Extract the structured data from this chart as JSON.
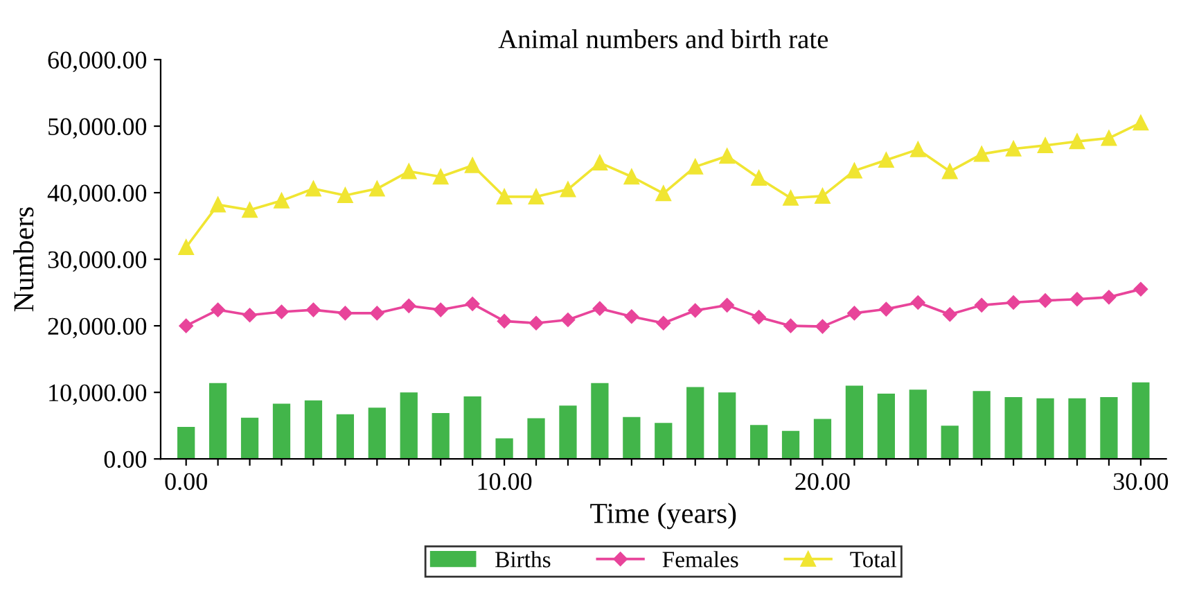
{
  "chart_data": {
    "type": "bar",
    "title": "Animal numbers and birth rate",
    "xlabel": "Time (years)",
    "ylabel": "Numbers",
    "x": [
      0,
      1,
      2,
      3,
      4,
      5,
      6,
      7,
      8,
      9,
      10,
      11,
      12,
      13,
      14,
      15,
      16,
      17,
      18,
      19,
      20,
      21,
      22,
      23,
      24,
      25,
      26,
      27,
      28,
      29,
      30
    ],
    "series": [
      {
        "name": "Births",
        "color": "#42b54a",
        "values": [
          4800,
          11400,
          6200,
          8300,
          8800,
          6700,
          7700,
          10000,
          6900,
          9400,
          3100,
          6100,
          8000,
          11400,
          6300,
          5400,
          10800,
          10000,
          5100,
          4200,
          6000,
          11000,
          9800,
          10400,
          5000,
          10200,
          9300,
          9100,
          9100,
          9300,
          11500
        ]
      },
      {
        "name": "Females",
        "type": "line",
        "marker": "diamond",
        "color": "#e8449a",
        "values": [
          20000,
          22400,
          21600,
          22100,
          22400,
          21900,
          21900,
          23000,
          22400,
          23300,
          20700,
          20400,
          20900,
          22600,
          21400,
          20400,
          22300,
          23100,
          21300,
          20000,
          19900,
          21900,
          22500,
          23500,
          21700,
          23100,
          23500,
          23800,
          24000,
          24300,
          25500
        ]
      },
      {
        "name": "Total",
        "type": "line",
        "marker": "triangle",
        "color": "#f0e532",
        "values": [
          31800,
          38200,
          37400,
          38800,
          40600,
          39600,
          40600,
          43200,
          42400,
          44100,
          39400,
          39400,
          40500,
          44500,
          42400,
          39900,
          43900,
          45500,
          42200,
          39200,
          39500,
          43300,
          44900,
          46500,
          43200,
          45800,
          46600,
          47100,
          47700,
          48200,
          50500
        ]
      }
    ],
    "xlim": [
      -0.8,
      30.8
    ],
    "xticks": [
      {
        "value": 0,
        "label": "0.00"
      },
      {
        "value": 1,
        "label": null
      },
      {
        "value": 2,
        "label": null
      },
      {
        "value": 3,
        "label": null
      },
      {
        "value": 4,
        "label": null
      },
      {
        "value": 5,
        "label": null
      },
      {
        "value": 6,
        "label": null
      },
      {
        "value": 7,
        "label": null
      },
      {
        "value": 8,
        "label": null
      },
      {
        "value": 9,
        "label": null
      },
      {
        "value": 10,
        "label": "10.00"
      },
      {
        "value": 11,
        "label": null
      },
      {
        "value": 12,
        "label": null
      },
      {
        "value": 13,
        "label": null
      },
      {
        "value": 14,
        "label": null
      },
      {
        "value": 15,
        "label": null
      },
      {
        "value": 16,
        "label": null
      },
      {
        "value": 17,
        "label": null
      },
      {
        "value": 18,
        "label": null
      },
      {
        "value": 19,
        "label": null
      },
      {
        "value": 20,
        "label": "20.00"
      },
      {
        "value": 21,
        "label": null
      },
      {
        "value": 22,
        "label": null
      },
      {
        "value": 23,
        "label": null
      },
      {
        "value": 24,
        "label": null
      },
      {
        "value": 25,
        "label": null
      },
      {
        "value": 26,
        "label": null
      },
      {
        "value": 27,
        "label": null
      },
      {
        "value": 28,
        "label": null
      },
      {
        "value": 29,
        "label": null
      },
      {
        "value": 30,
        "label": "30.00"
      }
    ],
    "ylim": [
      0,
      60000
    ],
    "yticks": [
      {
        "value": 0,
        "label": "0.00"
      },
      {
        "value": 10000,
        "label": "10,000.00"
      },
      {
        "value": 20000,
        "label": "20,000.00"
      },
      {
        "value": 30000,
        "label": "30,000.00"
      },
      {
        "value": 40000,
        "label": "40,000.00"
      },
      {
        "value": 50000,
        "label": "50,000.00"
      },
      {
        "value": 60000,
        "label": "60,000.00"
      }
    ],
    "grid": false,
    "legend": "bottom"
  }
}
